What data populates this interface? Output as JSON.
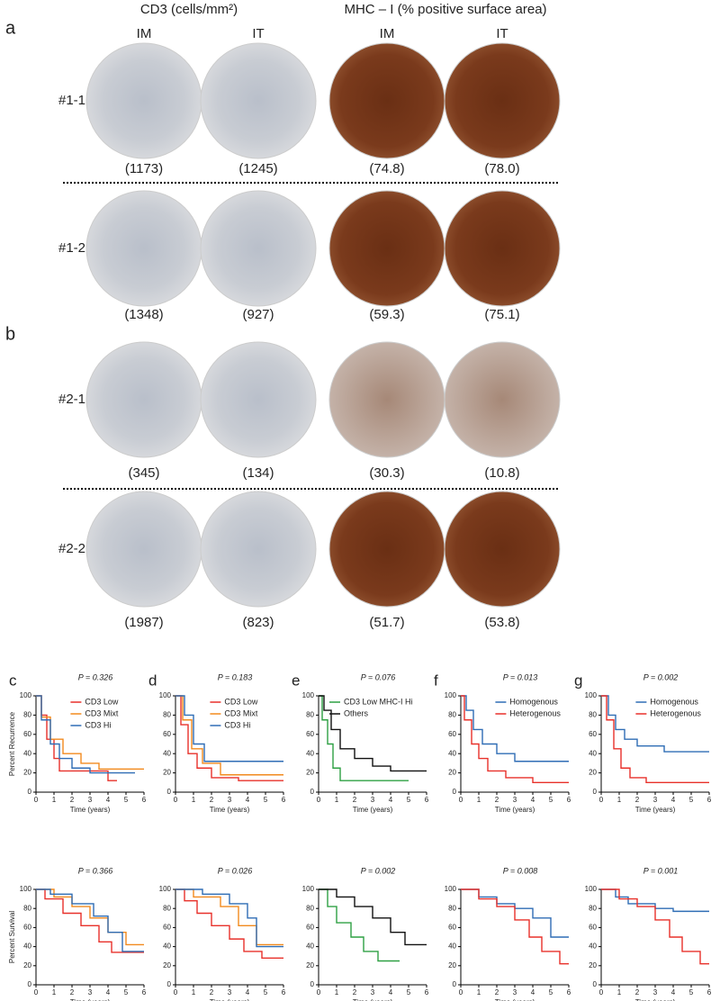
{
  "header": {
    "cd3": "CD3 (cells/mm²)",
    "mhc": "MHC – I (% positive surface area)"
  },
  "columns": [
    "IM",
    "IT",
    "IM",
    "IT"
  ],
  "panels": [
    {
      "letter": "a",
      "rows": [
        {
          "label": "#1-1",
          "values": [
            "(1173)",
            "(1245)",
            "(74.8)",
            "(78.0)"
          ]
        },
        {
          "label": "#1-2",
          "values": [
            "(1348)",
            "(927)",
            "(59.3)",
            "(75.1)"
          ]
        }
      ]
    },
    {
      "letter": "b",
      "rows": [
        {
          "label": "#2-1",
          "values": [
            "(345)",
            "(134)",
            "(30.3)",
            "(10.8)"
          ]
        },
        {
          "label": "#2-2",
          "values": [
            "(1987)",
            "(823)",
            "(51.7)",
            "(53.8)"
          ]
        }
      ]
    }
  ],
  "chart_data": [
    {
      "type": "line",
      "panel": "c",
      "title": "P = 0.326",
      "ylabel": "Percent Recurrence",
      "xlabel": "Time (years)",
      "xlim": [
        0,
        6
      ],
      "ylim": [
        0,
        100
      ],
      "xticks": [
        0,
        1,
        2,
        3,
        4,
        5,
        6
      ],
      "yticks": [
        0,
        20,
        40,
        60,
        80,
        100
      ],
      "legend": "upper right",
      "series": [
        {
          "name": "CD3 Low",
          "color": "#e8312a",
          "x": [
            0,
            0.3,
            0.3,
            0.6,
            0.6,
            1,
            1,
            1.3,
            1.3,
            4,
            4,
            4.5
          ],
          "values": [
            100,
            100,
            80,
            80,
            55,
            55,
            35,
            35,
            22,
            22,
            12,
            12
          ]
        },
        {
          "name": "CD3 Mixt",
          "color": "#f28a1e",
          "x": [
            0,
            0.3,
            0.3,
            0.8,
            0.8,
            1.5,
            1.5,
            2.5,
            2.5,
            3.5,
            3.5,
            6
          ],
          "values": [
            100,
            100,
            78,
            78,
            55,
            55,
            40,
            40,
            30,
            30,
            24,
            24
          ]
        },
        {
          "name": "CD3 Hi",
          "color": "#2f6db5",
          "x": [
            0,
            0.3,
            0.3,
            0.8,
            0.8,
            1.3,
            1.3,
            2,
            2,
            3,
            3,
            5.5
          ],
          "values": [
            100,
            100,
            75,
            75,
            50,
            50,
            35,
            35,
            25,
            25,
            20,
            20
          ]
        }
      ]
    },
    {
      "type": "line",
      "panel": "d",
      "title": "P = 0.183",
      "xlabel": "Time (years)",
      "xlim": [
        0,
        6
      ],
      "ylim": [
        0,
        100
      ],
      "xticks": [
        0,
        1,
        2,
        3,
        4,
        5,
        6
      ],
      "yticks": [
        0,
        20,
        40,
        60,
        80,
        100
      ],
      "legend": "upper right",
      "series": [
        {
          "name": "CD3 Low",
          "color": "#e8312a",
          "x": [
            0,
            0.3,
            0.3,
            0.7,
            0.7,
            1.2,
            1.2,
            2,
            2,
            3.5,
            3.5,
            6
          ],
          "values": [
            100,
            100,
            70,
            70,
            40,
            40,
            25,
            25,
            15,
            15,
            12,
            12
          ]
        },
        {
          "name": "CD3 Mixt",
          "color": "#f28a1e",
          "x": [
            0,
            0.4,
            0.4,
            0.9,
            0.9,
            1.5,
            1.5,
            2.5,
            2.5,
            6
          ],
          "values": [
            100,
            100,
            75,
            75,
            45,
            45,
            30,
            30,
            18,
            18
          ]
        },
        {
          "name": "CD3 Hi",
          "color": "#2f6db5",
          "x": [
            0,
            0.5,
            0.5,
            1,
            1,
            1.6,
            1.6,
            6
          ],
          "values": [
            100,
            100,
            80,
            80,
            50,
            50,
            32,
            32
          ]
        }
      ]
    },
    {
      "type": "line",
      "panel": "e",
      "title": "P = 0.076",
      "xlabel": "Time (years)",
      "xlim": [
        0,
        6
      ],
      "ylim": [
        0,
        100
      ],
      "xticks": [
        0,
        1,
        2,
        3,
        4,
        5,
        6
      ],
      "yticks": [
        0,
        20,
        40,
        60,
        80,
        100
      ],
      "legend": "upper left",
      "series": [
        {
          "name": "CD3 Low MHC-I Hi",
          "color": "#2ea043",
          "x": [
            0,
            0.2,
            0.2,
            0.5,
            0.5,
            0.8,
            0.8,
            1.2,
            1.2,
            5
          ],
          "values": [
            100,
            100,
            75,
            75,
            50,
            50,
            25,
            25,
            12,
            12
          ]
        },
        {
          "name": "Others",
          "color": "#111111",
          "x": [
            0,
            0.3,
            0.3,
            0.7,
            0.7,
            1.2,
            1.2,
            2,
            2,
            3,
            3,
            4,
            4,
            6
          ],
          "values": [
            100,
            100,
            85,
            85,
            65,
            65,
            45,
            45,
            35,
            35,
            27,
            27,
            22,
            22
          ]
        }
      ]
    },
    {
      "type": "line",
      "panel": "f",
      "title": "P = 0.013",
      "xlabel": "Time (years)",
      "xlim": [
        0,
        6
      ],
      "ylim": [
        0,
        100
      ],
      "xticks": [
        0,
        1,
        2,
        3,
        4,
        5,
        6
      ],
      "yticks": [
        0,
        20,
        40,
        60,
        80,
        100
      ],
      "legend": "upper right",
      "series": [
        {
          "name": "Homogenous",
          "color": "#2f6db5",
          "x": [
            0,
            0.3,
            0.3,
            0.7,
            0.7,
            1.2,
            1.2,
            2,
            2,
            3,
            3,
            6
          ],
          "values": [
            100,
            100,
            85,
            85,
            65,
            65,
            50,
            50,
            40,
            40,
            32,
            32
          ]
        },
        {
          "name": "Heterogenous",
          "color": "#e8312a",
          "x": [
            0,
            0.2,
            0.2,
            0.6,
            0.6,
            1,
            1,
            1.5,
            1.5,
            2.5,
            2.5,
            4,
            4,
            6
          ],
          "values": [
            100,
            100,
            75,
            75,
            50,
            50,
            35,
            35,
            22,
            22,
            15,
            15,
            10,
            10
          ]
        }
      ]
    },
    {
      "type": "line",
      "panel": "g",
      "title": "P = 0.002",
      "xlabel": "Time (years)",
      "xlim": [
        0,
        6
      ],
      "ylim": [
        0,
        100
      ],
      "xticks": [
        0,
        1,
        2,
        3,
        4,
        5,
        6
      ],
      "yticks": [
        0,
        20,
        40,
        60,
        80,
        100
      ],
      "legend": "upper right",
      "series": [
        {
          "name": "Homogenous",
          "color": "#2f6db5",
          "x": [
            0,
            0.4,
            0.4,
            0.8,
            0.8,
            1.3,
            1.3,
            2,
            2,
            3.5,
            3.5,
            6
          ],
          "values": [
            100,
            100,
            80,
            80,
            65,
            65,
            55,
            55,
            48,
            48,
            42,
            42
          ]
        },
        {
          "name": "Heterogenous",
          "color": "#e8312a",
          "x": [
            0,
            0.3,
            0.3,
            0.7,
            0.7,
            1.1,
            1.1,
            1.6,
            1.6,
            2.5,
            2.5,
            6
          ],
          "values": [
            100,
            100,
            75,
            75,
            45,
            45,
            25,
            25,
            15,
            15,
            10,
            10
          ]
        }
      ]
    },
    {
      "type": "line",
      "title": "P = 0.366",
      "ylabel": "Percent Survival",
      "xlabel": "Time (years)",
      "xlim": [
        0,
        6
      ],
      "ylim": [
        0,
        100
      ],
      "xticks": [
        0,
        1,
        2,
        3,
        4,
        5,
        6
      ],
      "yticks": [
        0,
        20,
        40,
        60,
        80,
        100
      ],
      "series": [
        {
          "color": "#e8312a",
          "x": [
            0,
            0.5,
            0.5,
            1.5,
            1.5,
            2.5,
            2.5,
            3.5,
            3.5,
            4.2,
            4.2,
            6
          ],
          "values": [
            100,
            100,
            90,
            90,
            75,
            75,
            62,
            62,
            45,
            45,
            34,
            34
          ]
        },
        {
          "color": "#f28a1e",
          "x": [
            0,
            1,
            1,
            2,
            2,
            3,
            3,
            4,
            4,
            5,
            5,
            6
          ],
          "values": [
            100,
            100,
            92,
            92,
            82,
            82,
            70,
            70,
            55,
            55,
            42,
            42
          ]
        },
        {
          "color": "#2f6db5",
          "x": [
            0,
            0.8,
            0.8,
            2,
            2,
            3.2,
            3.2,
            4,
            4,
            4.8,
            4.8,
            6
          ],
          "values": [
            100,
            100,
            95,
            95,
            85,
            85,
            72,
            72,
            55,
            55,
            35,
            35
          ]
        }
      ]
    },
    {
      "type": "line",
      "title": "P = 0.026",
      "xlabel": "Time (years)",
      "xlim": [
        0,
        6
      ],
      "ylim": [
        0,
        100
      ],
      "xticks": [
        0,
        1,
        2,
        3,
        4,
        5,
        6
      ],
      "yticks": [
        0,
        20,
        40,
        60,
        80,
        100
      ],
      "series": [
        {
          "color": "#e8312a",
          "x": [
            0,
            0.5,
            0.5,
            1.2,
            1.2,
            2,
            2,
            3,
            3,
            3.8,
            3.8,
            4.8,
            4.8,
            6
          ],
          "values": [
            100,
            100,
            88,
            88,
            75,
            75,
            62,
            62,
            48,
            48,
            35,
            35,
            28,
            28
          ]
        },
        {
          "color": "#f28a1e",
          "x": [
            0,
            1,
            1,
            2.5,
            2.5,
            3.5,
            3.5,
            4.5,
            4.5,
            6
          ],
          "values": [
            100,
            100,
            92,
            92,
            82,
            82,
            62,
            62,
            42,
            42
          ]
        },
        {
          "color": "#2f6db5",
          "x": [
            0,
            1.5,
            1.5,
            3,
            3,
            4,
            4,
            4.5,
            4.5,
            6
          ],
          "values": [
            100,
            100,
            95,
            95,
            85,
            85,
            70,
            70,
            40,
            40
          ]
        }
      ]
    },
    {
      "type": "line",
      "title": "P = 0.002",
      "xlabel": "Time (years)",
      "xlim": [
        0,
        6
      ],
      "ylim": [
        0,
        100
      ],
      "xticks": [
        0,
        1,
        2,
        3,
        4,
        5,
        6
      ],
      "yticks": [
        0,
        20,
        40,
        60,
        80,
        100
      ],
      "series": [
        {
          "color": "#2ea043",
          "x": [
            0,
            0.5,
            0.5,
            1,
            1,
            1.8,
            1.8,
            2.5,
            2.5,
            3.3,
            3.3,
            4.5
          ],
          "values": [
            100,
            100,
            82,
            82,
            65,
            65,
            50,
            50,
            35,
            35,
            25,
            25
          ]
        },
        {
          "color": "#111111",
          "x": [
            0,
            1,
            1,
            2,
            2,
            3,
            3,
            4,
            4,
            4.8,
            4.8,
            6
          ],
          "values": [
            100,
            100,
            92,
            92,
            82,
            82,
            70,
            70,
            55,
            55,
            42,
            42
          ]
        }
      ]
    },
    {
      "type": "line",
      "title": "P = 0.008",
      "xlabel": "Time (years)",
      "xlim": [
        0,
        6
      ],
      "ylim": [
        0,
        100
      ],
      "xticks": [
        0,
        1,
        2,
        3,
        4,
        5,
        6
      ],
      "yticks": [
        0,
        20,
        40,
        60,
        80,
        100
      ],
      "series": [
        {
          "color": "#2f6db5",
          "x": [
            0,
            1,
            1,
            2,
            2,
            3,
            3,
            4,
            4,
            5,
            5,
            6
          ],
          "values": [
            100,
            100,
            92,
            92,
            85,
            85,
            80,
            80,
            70,
            70,
            50,
            50
          ]
        },
        {
          "color": "#e8312a",
          "x": [
            0,
            1,
            1,
            2,
            2,
            3,
            3,
            3.8,
            3.8,
            4.5,
            4.5,
            5.5,
            5.5,
            6
          ],
          "values": [
            100,
            100,
            90,
            90,
            82,
            82,
            68,
            68,
            50,
            50,
            35,
            35,
            22,
            22
          ]
        }
      ]
    },
    {
      "type": "line",
      "title": "P = 0.001",
      "xlabel": "Time (years)",
      "xlim": [
        0,
        6
      ],
      "ylim": [
        0,
        100
      ],
      "xticks": [
        0,
        1,
        2,
        3,
        4,
        5,
        6
      ],
      "yticks": [
        0,
        20,
        40,
        60,
        80,
        100
      ],
      "series": [
        {
          "color": "#2f6db5",
          "x": [
            0,
            0.8,
            0.8,
            1.5,
            1.5,
            3,
            3,
            4,
            4,
            6
          ],
          "values": [
            100,
            100,
            92,
            92,
            85,
            85,
            80,
            80,
            77,
            77
          ]
        },
        {
          "color": "#e8312a",
          "x": [
            0,
            1,
            1,
            2,
            2,
            3,
            3,
            3.8,
            3.8,
            4.5,
            4.5,
            5.5,
            5.5,
            6
          ],
          "values": [
            100,
            100,
            90,
            90,
            82,
            82,
            68,
            68,
            50,
            50,
            35,
            35,
            22,
            22
          ]
        }
      ]
    }
  ]
}
